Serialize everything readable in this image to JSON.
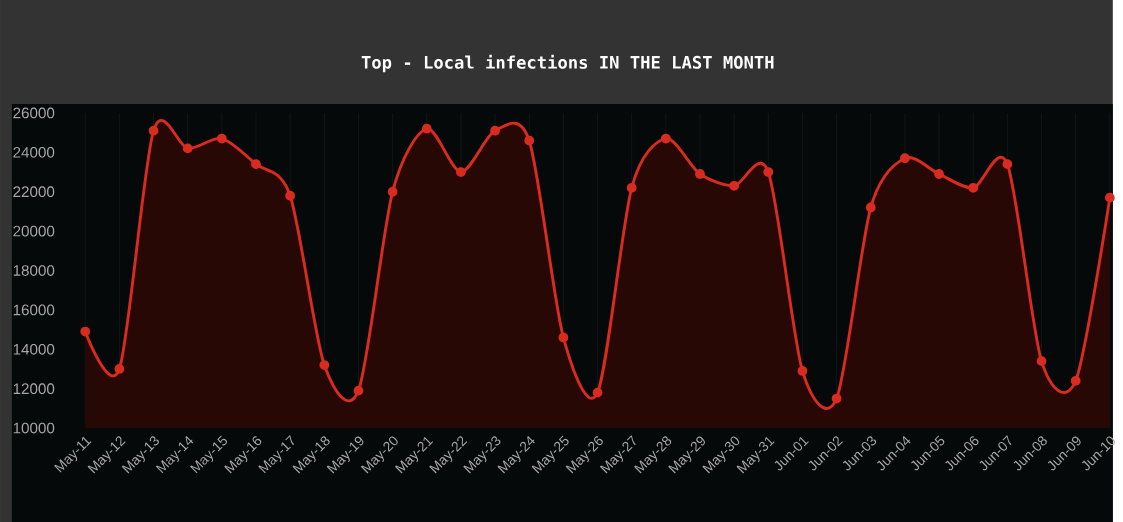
{
  "chart_data": {
    "type": "area",
    "title": "Top - Local infections IN THE LAST MONTH",
    "categories": [
      "May-11",
      "May-12",
      "May-13",
      "May-14",
      "May-15",
      "May-16",
      "May-17",
      "May-18",
      "May-19",
      "May-20",
      "May-21",
      "May-22",
      "May-23",
      "May-24",
      "May-25",
      "May-26",
      "May-27",
      "May-28",
      "May-29",
      "May-30",
      "May-31",
      "Jun-01",
      "Jun-02",
      "Jun-03",
      "Jun-04",
      "Jun-05",
      "Jun-06",
      "Jun-07",
      "Jun-08",
      "Jun-09",
      "Jun-10"
    ],
    "values": [
      14900,
      13000,
      25100,
      24200,
      24700,
      23400,
      21800,
      13200,
      11900,
      22000,
      25200,
      23000,
      25100,
      24600,
      14600,
      11800,
      22200,
      24700,
      22900,
      22300,
      23000,
      12900,
      11500,
      21200,
      23700,
      22900,
      22200,
      23400,
      13400,
      12400,
      21700
    ],
    "color": "#d92b1e",
    "ylim": [
      10000,
      26000
    ],
    "yticks": [
      10000,
      12000,
      14000,
      16000,
      18000,
      20000,
      22000,
      24000,
      26000
    ],
    "grid": "x",
    "marker": "circle"
  }
}
